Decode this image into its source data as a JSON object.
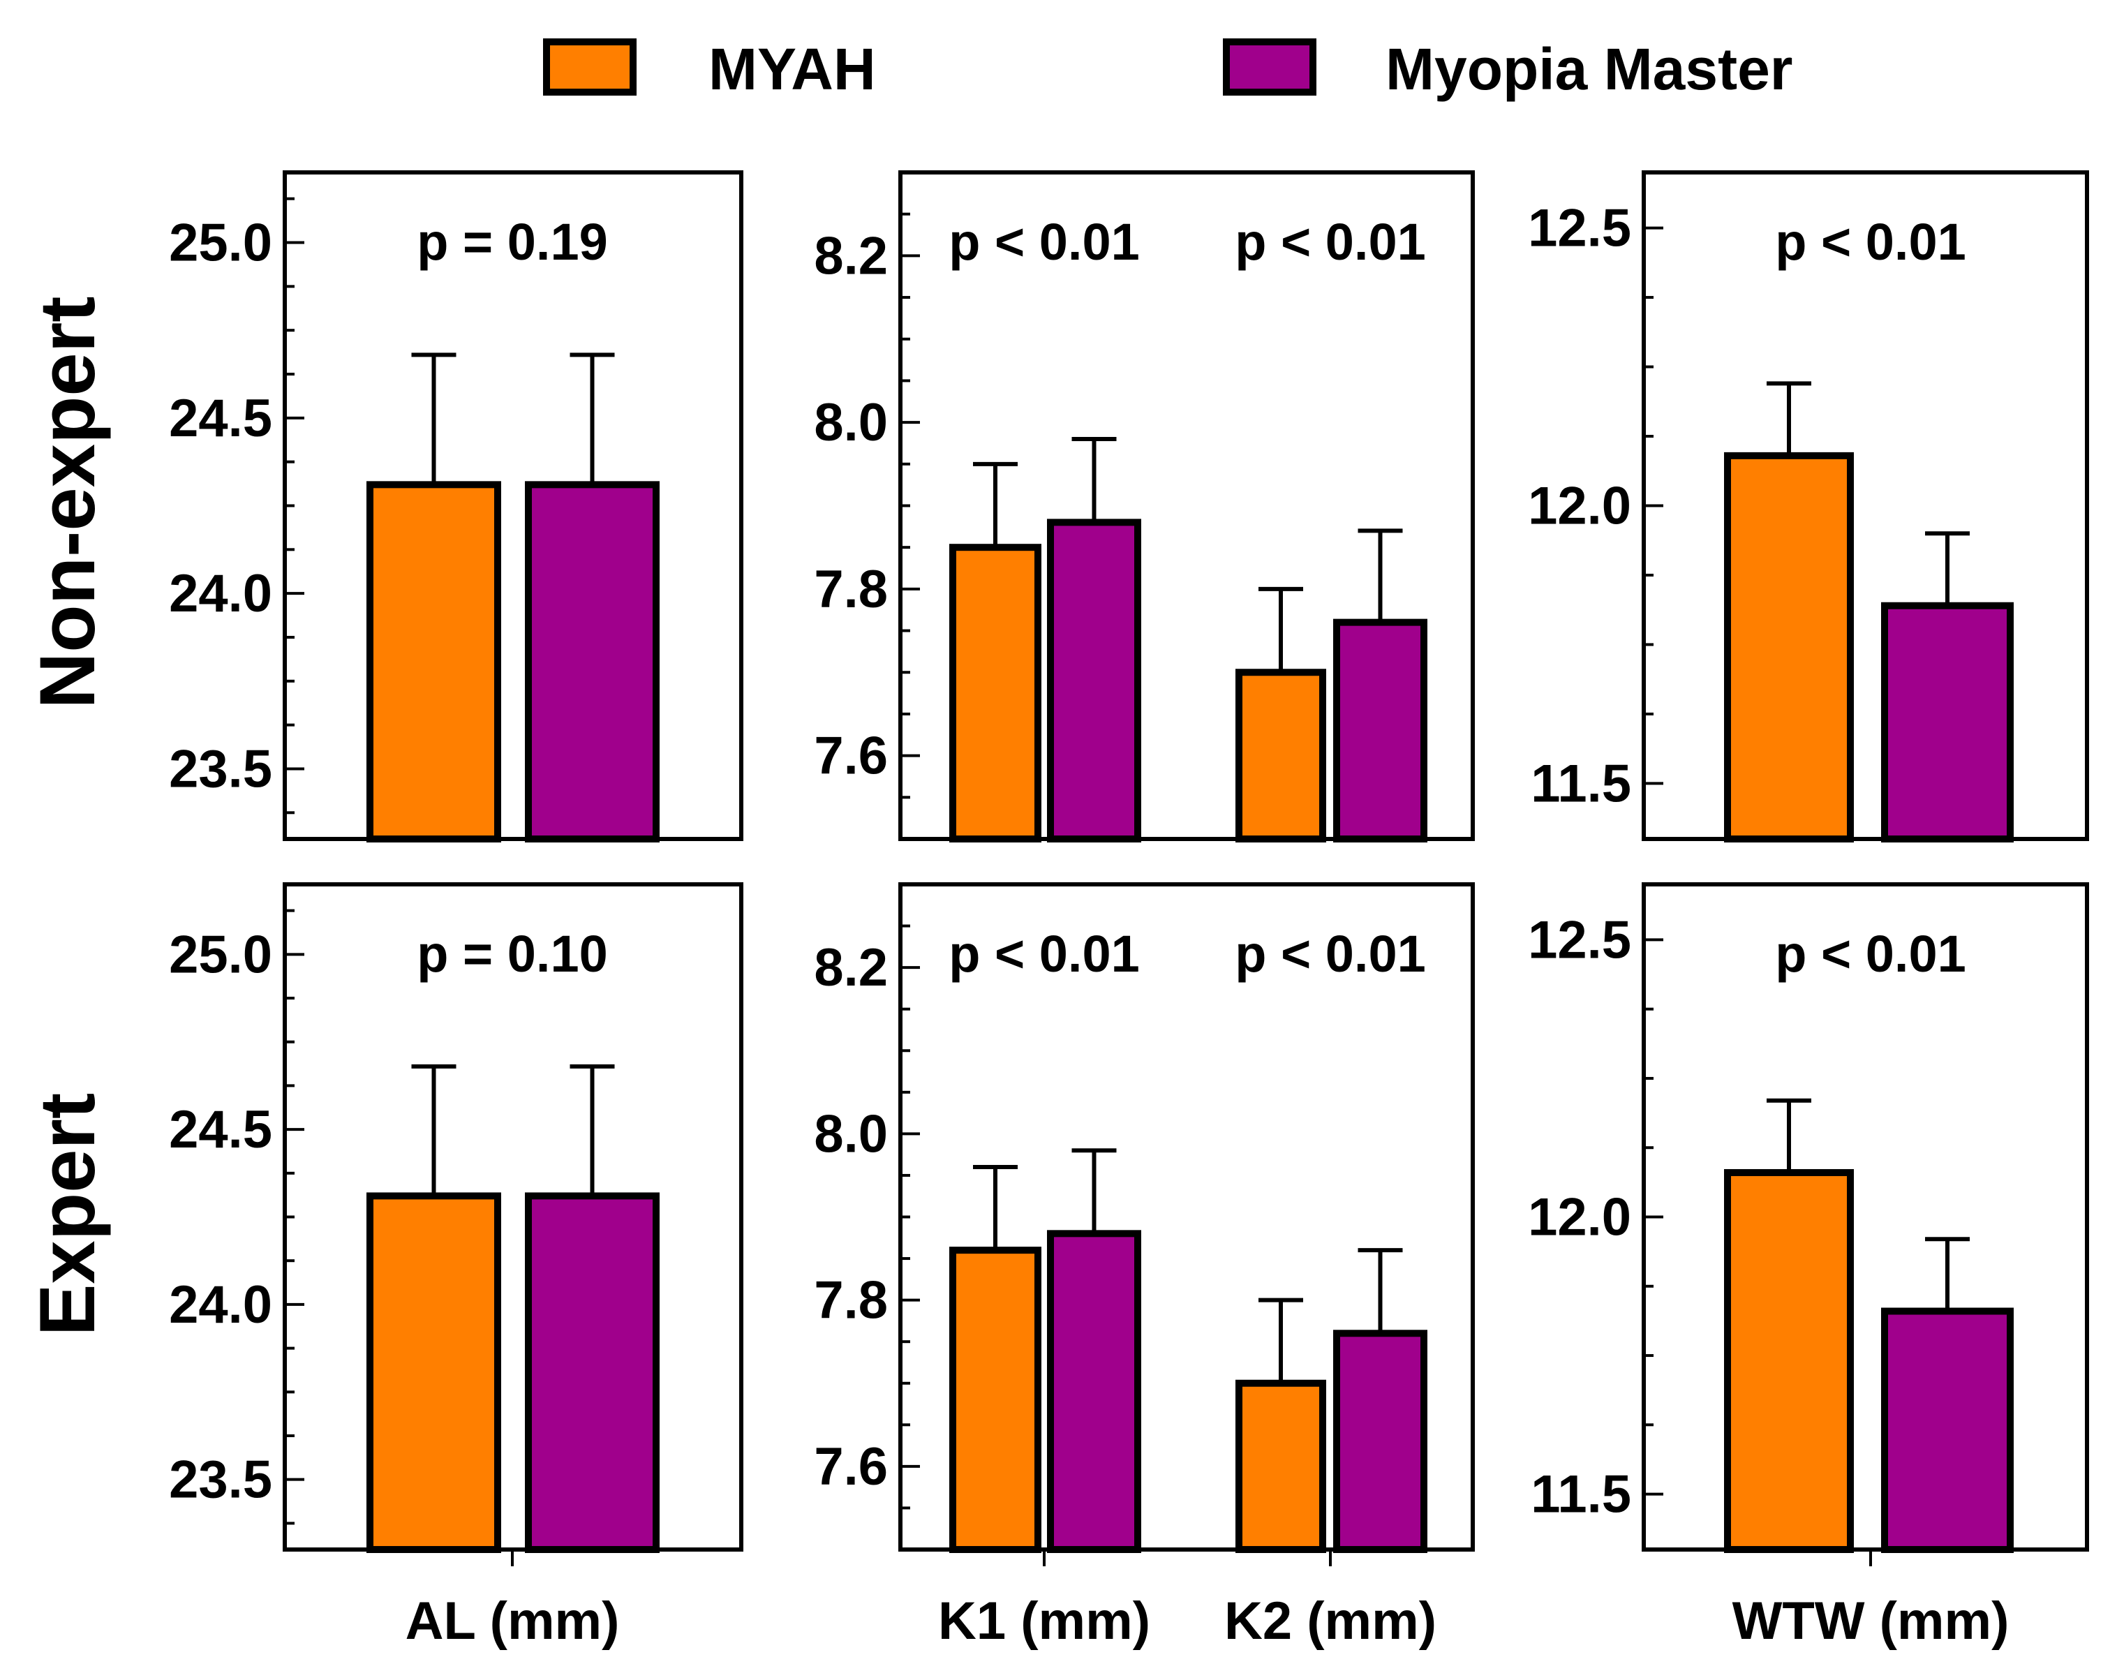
{
  "legend": {
    "items": [
      {
        "label": "MYAH",
        "color": "#ff7f00"
      },
      {
        "label": "Myopia Master",
        "color": "#a0008c"
      }
    ]
  },
  "row_labels": [
    "Non-expert",
    "Expert"
  ],
  "chart_data": [
    {
      "type": "bar",
      "row": "Non-expert",
      "col": 0,
      "categories": [
        "AL (mm)"
      ],
      "series": [
        {
          "name": "MYAH",
          "values": [
            24.31
          ],
          "errors": [
            0.37
          ]
        },
        {
          "name": "Myopia Master",
          "values": [
            24.31
          ],
          "errors": [
            0.37
          ]
        }
      ],
      "ylim": [
        23.3,
        25.2
      ],
      "yticks": [
        23.5,
        24.0,
        24.5,
        25.0
      ],
      "ytick_labels": [
        "23.5",
        "24.0",
        "24.5",
        "25.0"
      ],
      "pvalues": [
        "p = 0.19"
      ]
    },
    {
      "type": "bar",
      "row": "Non-expert",
      "col": 1,
      "categories": [
        "K1 (mm)",
        "K2 (mm)"
      ],
      "series": [
        {
          "name": "MYAH",
          "values": [
            7.85,
            7.7
          ],
          "errors": [
            0.1,
            0.1
          ]
        },
        {
          "name": "Myopia Master",
          "values": [
            7.88,
            7.76
          ],
          "errors": [
            0.1,
            0.11
          ]
        }
      ],
      "ylim": [
        7.5,
        8.3
      ],
      "yticks": [
        7.6,
        7.8,
        8.0,
        8.2
      ],
      "ytick_labels": [
        "7.6",
        "7.8",
        "8.0",
        "8.2"
      ],
      "pvalues": [
        "p < 0.01",
        "p < 0.01"
      ]
    },
    {
      "type": "bar",
      "row": "Non-expert",
      "col": 2,
      "categories": [
        "WTW (mm)"
      ],
      "series": [
        {
          "name": "MYAH",
          "values": [
            12.09
          ],
          "errors": [
            0.13
          ]
        },
        {
          "name": "Myopia Master",
          "values": [
            11.82
          ],
          "errors": [
            0.13
          ]
        }
      ],
      "ylim": [
        11.4,
        12.6
      ],
      "yticks": [
        11.5,
        12.0,
        12.5
      ],
      "ytick_labels": [
        "11.5",
        "12.0",
        "12.5"
      ],
      "pvalues": [
        "p < 0.01"
      ]
    },
    {
      "type": "bar",
      "row": "Expert",
      "col": 0,
      "categories": [
        "AL (mm)"
      ],
      "series": [
        {
          "name": "MYAH",
          "values": [
            24.31
          ],
          "errors": [
            0.37
          ]
        },
        {
          "name": "Myopia Master",
          "values": [
            24.31
          ],
          "errors": [
            0.37
          ]
        }
      ],
      "ylim": [
        23.3,
        25.2
      ],
      "yticks": [
        23.5,
        24.0,
        24.5,
        25.0
      ],
      "ytick_labels": [
        "23.5",
        "24.0",
        "24.5",
        "25.0"
      ],
      "pvalues": [
        "p = 0.10"
      ]
    },
    {
      "type": "bar",
      "row": "Expert",
      "col": 1,
      "categories": [
        "K1 (mm)",
        "K2 (mm)"
      ],
      "series": [
        {
          "name": "MYAH",
          "values": [
            7.86,
            7.7
          ],
          "errors": [
            0.1,
            0.1
          ]
        },
        {
          "name": "Myopia Master",
          "values": [
            7.88,
            7.76
          ],
          "errors": [
            0.1,
            0.1
          ]
        }
      ],
      "ylim": [
        7.5,
        8.3
      ],
      "yticks": [
        7.6,
        7.8,
        8.0,
        8.2
      ],
      "ytick_labels": [
        "7.6",
        "7.8",
        "8.0",
        "8.2"
      ],
      "pvalues": [
        "p < 0.01",
        "p < 0.01"
      ]
    },
    {
      "type": "bar",
      "row": "Expert",
      "col": 2,
      "categories": [
        "WTW (mm)"
      ],
      "series": [
        {
          "name": "MYAH",
          "values": [
            12.08
          ],
          "errors": [
            0.13
          ]
        },
        {
          "name": "Myopia Master",
          "values": [
            11.83
          ],
          "errors": [
            0.13
          ]
        }
      ],
      "ylim": [
        11.4,
        12.6
      ],
      "yticks": [
        11.5,
        12.0,
        12.5
      ],
      "ytick_labels": [
        "11.5",
        "12.0",
        "12.5"
      ],
      "pvalues": [
        "p < 0.01"
      ]
    }
  ]
}
